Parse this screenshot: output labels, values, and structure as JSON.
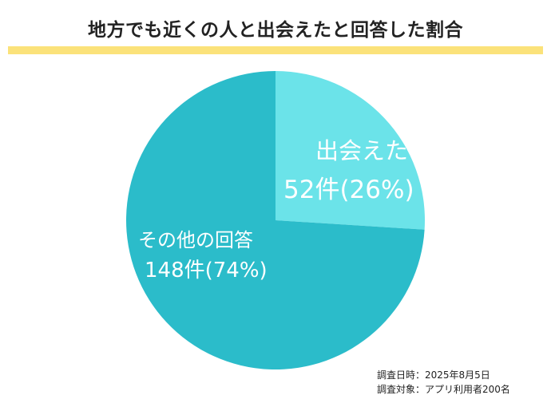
{
  "title": "地方でも近くの人と出会えたと回答した割合",
  "colors": {
    "underline": "#fbe27a",
    "background": "#ffffff",
    "label_text": "#ffffff"
  },
  "chart_data": {
    "type": "pie",
    "title": "地方でも近くの人と出会えたと回答した割合",
    "slices": [
      {
        "label": "出会えた",
        "value": 52,
        "value_text": "52件(26%)",
        "color": "#6be3e9"
      },
      {
        "label": "その他の回答",
        "value": 148,
        "value_text": "148件(74%)",
        "color": "#2bbcca"
      }
    ],
    "start": "12 o'clock",
    "direction": "clockwise"
  },
  "footnotes": {
    "date": "調査日時：2025年8月5日",
    "target": "調査対象：アプリ利用者200名"
  }
}
